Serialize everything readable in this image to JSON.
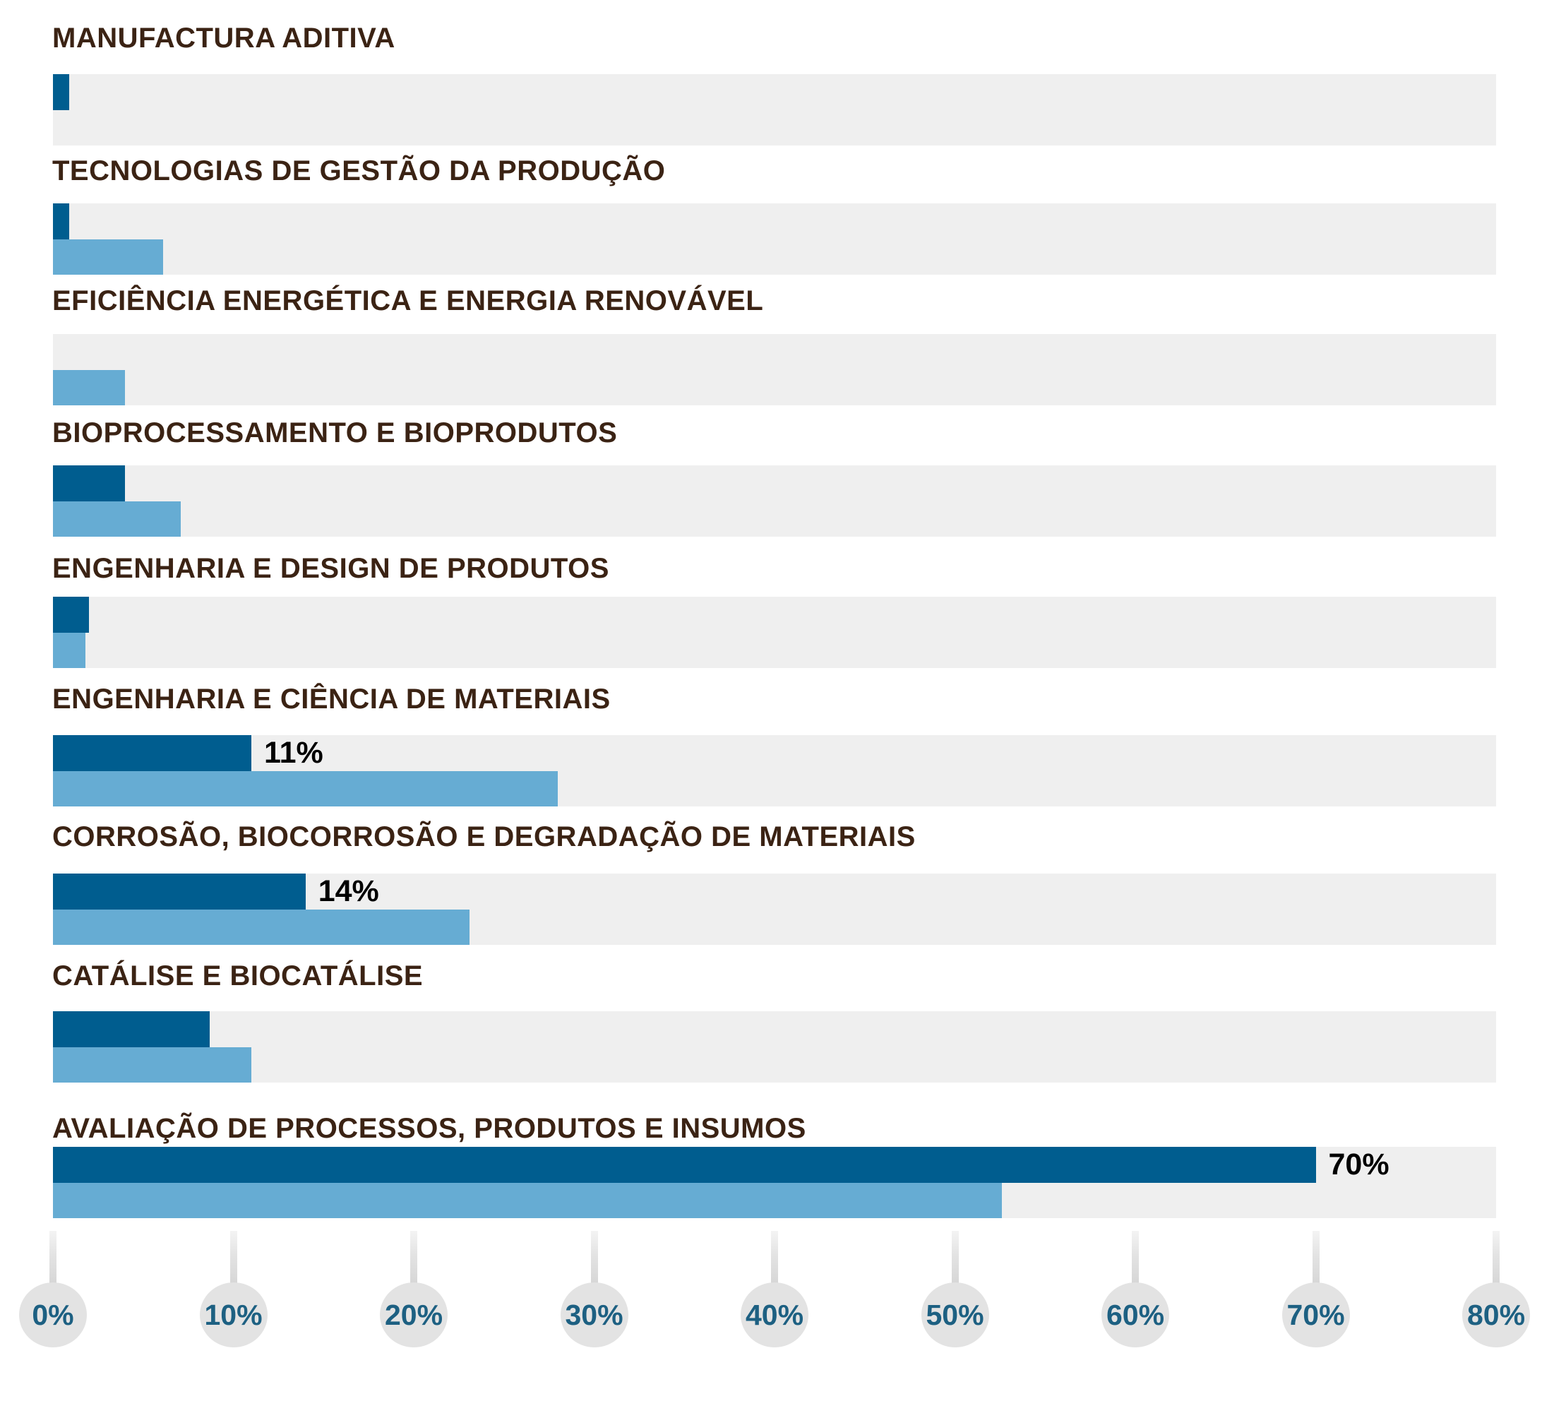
{
  "chart_data": {
    "type": "bar",
    "orientation": "horizontal",
    "title": "",
    "xlabel": "",
    "ylabel": "",
    "xlim": [
      0,
      80
    ],
    "grid": false,
    "legend_position": "none",
    "axis_tick_values": [
      0,
      10,
      20,
      30,
      40,
      50,
      60,
      70,
      80
    ],
    "axis_tick_labels": [
      "0%",
      "10%",
      "20%",
      "30%",
      "40%",
      "50%",
      "60%",
      "70%",
      "80%"
    ],
    "categories": [
      "MANUFACTURA ADITIVA",
      "TECNOLOGIAS DE GESTÃO DA PRODUÇÃO",
      "EFICIÊNCIA ENERGÉTICA E ENERGIA RENOVÁVEL",
      "BIOPROCESSAMENTO E BIOPRODUTOS",
      "ENGENHARIA E DESIGN DE PRODUTOS",
      "ENGENHARIA E CIÊNCIA DE MATERIAIS",
      "CORROSÃO, BIOCORROSÃO E DEGRADAÇÃO DE MATERIAIS",
      "CATÁLISE E BIOCATÁLISE",
      "AVALIAÇÃO DE PROCESSOS, PRODUTOS E INSUMOS"
    ],
    "series": [
      {
        "name": "series-dark-blue",
        "color": "#005D8F",
        "values": [
          0.9,
          0.9,
          0,
          4.0,
          2.0,
          11,
          14,
          8.7,
          70
        ],
        "data_labels": [
          "",
          "",
          "",
          "",
          "",
          "11%",
          "14%",
          "",
          "70%"
        ]
      },
      {
        "name": "series-light-blue",
        "color": "#66ACD3",
        "values": [
          0,
          6.1,
          4.0,
          7.1,
          1.8,
          28,
          23.1,
          11,
          52.6
        ],
        "data_labels": [
          "",
          "",
          "",
          "",
          "",
          "",
          "",
          "",
          ""
        ]
      }
    ]
  },
  "colors": {
    "background": "#FFFFFF",
    "track": "#EFEFEF",
    "category_label": "#3B2314",
    "bar_primary": "#005D8F",
    "bar_secondary": "#66ACD3",
    "value_label": "#000000",
    "tick_text": "#1D6082",
    "tick_bubble": "#E3E3E3"
  }
}
